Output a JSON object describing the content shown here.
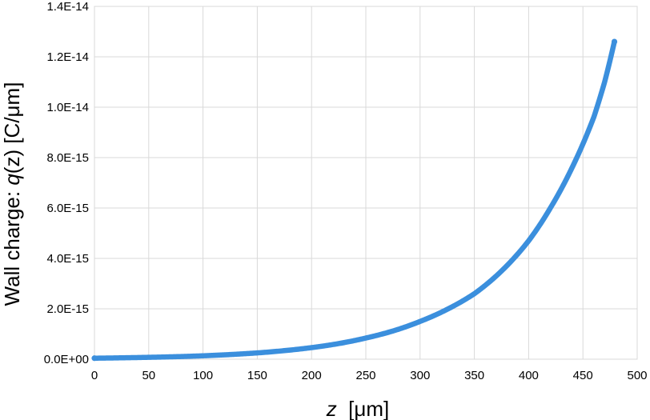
{
  "chart_data": {
    "type": "scatter",
    "xlabel_parts": [
      "z",
      "  [μm]"
    ],
    "ylabel_parts": [
      "Wall charge: ",
      "q",
      "(z) [C/μm]"
    ],
    "xlim": [
      0,
      500
    ],
    "ylim": [
      0,
      1.4e-14
    ],
    "x_ticks": [
      0,
      50,
      100,
      150,
      200,
      250,
      300,
      350,
      400,
      450,
      500
    ],
    "x_tick_labels": [
      "0",
      "50",
      "100",
      "150",
      "200",
      "250",
      "300",
      "350",
      "400",
      "450",
      "500"
    ],
    "y_ticks": [
      0,
      2e-15,
      4e-15,
      6e-15,
      8e-15,
      1e-14,
      1.2e-14,
      1.4e-14
    ],
    "y_tick_labels": [
      "0.0E+00",
      "2.0E-15",
      "4.0E-15",
      "6.0E-15",
      "8.0E-15",
      "1.0E-14",
      "1.2E-14",
      "1.4E-14"
    ],
    "grid": true,
    "legend": false,
    "series_color": "#3b8fdd",
    "x": [
      0,
      25,
      50,
      75,
      100,
      125,
      150,
      175,
      200,
      225,
      250,
      275,
      300,
      325,
      350,
      375,
      400,
      420,
      440,
      460,
      470,
      479
    ],
    "y": [
      4e-17,
      5.5e-17,
      7.5e-17,
      1e-16,
      1.35e-16,
      1.85e-16,
      2.5e-16,
      3.4e-16,
      4.6e-16,
      6.2e-16,
      8.4e-16,
      1.12e-15,
      1.5e-15,
      1.98e-15,
      2.6e-15,
      3.5e-15,
      4.7e-15,
      6e-15,
      7.6e-15,
      9.6e-15,
      1.1e-14,
      1.26e-14
    ]
  }
}
